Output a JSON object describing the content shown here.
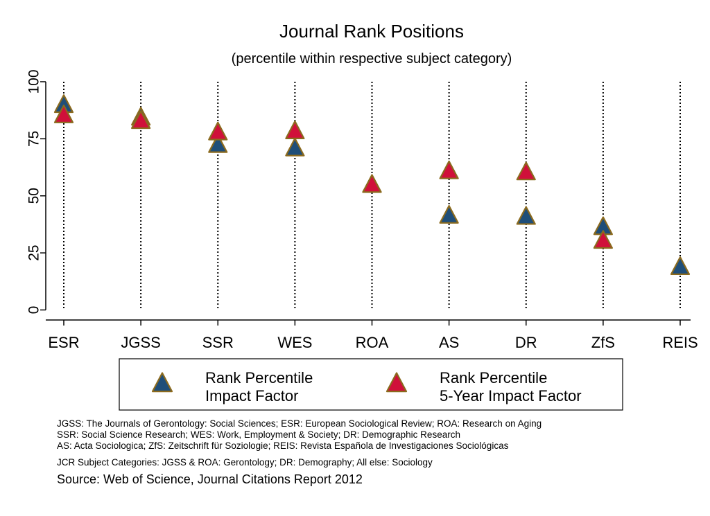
{
  "chart_data": {
    "type": "scatter",
    "title": "Journal Rank Positions",
    "subtitle": "(percentile within respective subject category)",
    "categories": [
      "ESR",
      "JGSS",
      "SSR",
      "WES",
      "ROA",
      "AS",
      "DR",
      "ZfS",
      "REIS"
    ],
    "yticks": [
      0,
      25,
      50,
      75,
      100
    ],
    "ylim": [
      0,
      100
    ],
    "series": [
      {
        "name": "Rank Percentile Impact Factor",
        "legend_lines": [
          "Rank Percentile",
          "Impact Factor"
        ],
        "color": "#1f4e79",
        "values": [
          89.5,
          84,
          72,
          70.5,
          54.5,
          41,
          40.5,
          36,
          18.5
        ]
      },
      {
        "name": "Rank Percentile 5-Year Impact Factor",
        "legend_lines": [
          "Rank Percentile",
          "5-Year Impact Factor"
        ],
        "color": "#d0103a",
        "values": [
          85,
          82.5,
          77.5,
          78,
          54.5,
          60.5,
          60,
          30,
          null
        ]
      }
    ],
    "marker_edge_color": "#8b6a1e",
    "grid": "vertical dotted line per category",
    "legend_position": "bottom"
  },
  "notes": [
    "JGSS: The Journals of Gerontology: Social Sciences; ESR: European Sociological Review; ROA: Research on Aging",
    "SSR: Social Science Research; WES: Work, Employment & Society; DR: Demographic Research",
    "AS: Acta Sociologica; ZfS: Zeitschrift für Soziologie; REIS: Revista Española de Investigaciones Sociológicas"
  ],
  "categories_note": "JCR Subject Categories: JGSS & ROA: Gerontology; DR: Demography; All else: Sociology",
  "source": "Source: Web of Science, Journal Citations Report 2012"
}
